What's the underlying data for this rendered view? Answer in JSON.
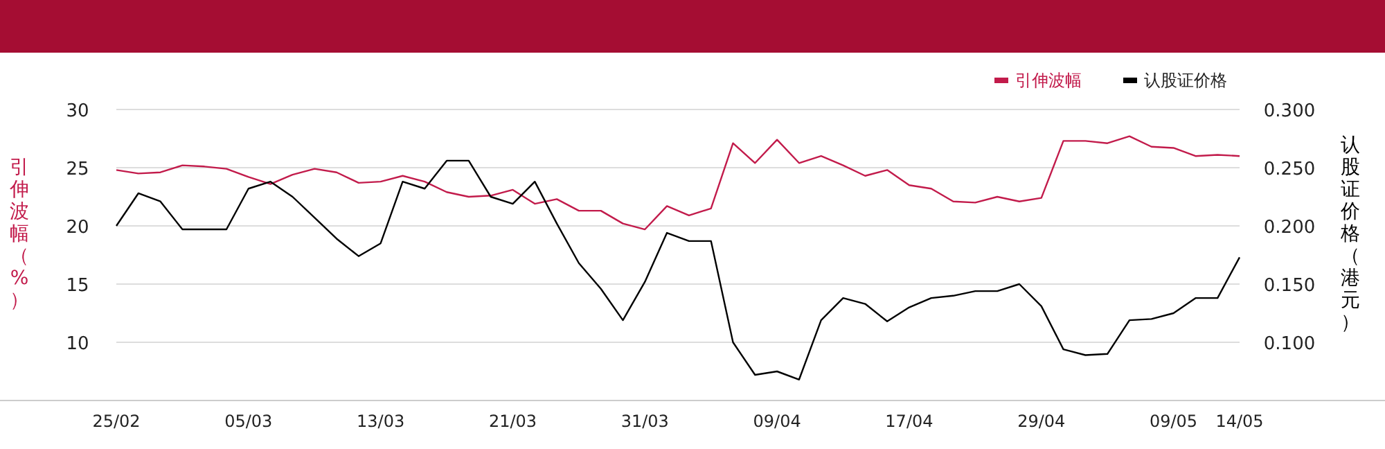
{
  "chart_data": {
    "type": "line",
    "categories": [
      "25/02",
      null,
      null,
      null,
      null,
      null,
      "05/03",
      null,
      null,
      null,
      null,
      null,
      "13/03",
      null,
      null,
      null,
      null,
      null,
      "21/03",
      null,
      null,
      null,
      null,
      null,
      "31/03",
      null,
      null,
      null,
      null,
      null,
      "09/04",
      null,
      null,
      null,
      null,
      null,
      "17/04",
      null,
      null,
      null,
      null,
      null,
      "29/04",
      null,
      null,
      null,
      null,
      null,
      "09/05",
      null,
      null,
      "14/05"
    ],
    "series": [
      {
        "name": "引伸波幅",
        "color": "#c21b4b",
        "values": [
          24.8,
          24.5,
          24.6,
          25.2,
          25.1,
          24.9,
          24.2,
          23.6,
          24.4,
          24.9,
          24.6,
          23.7,
          23.8,
          24.3,
          23.8,
          22.9,
          22.5,
          22.6,
          23.1,
          21.9,
          22.3,
          21.3,
          21.3,
          20.2,
          19.7,
          21.7,
          20.9,
          21.5,
          27.1,
          25.4,
          27.4,
          25.4,
          26.0,
          25.2,
          24.3,
          24.8,
          23.5,
          23.2,
          22.1,
          22.0,
          22.5,
          22.1,
          22.4,
          27.3,
          27.3,
          27.1,
          27.7,
          26.8,
          26.7,
          26.0,
          26.1,
          26.0
        ]
      },
      {
        "name": "认股证价格",
        "color": "#000000",
        "axis": "y2",
        "values": [
          0.2,
          0.228,
          0.221,
          0.197,
          0.197,
          0.197,
          0.232,
          0.238,
          0.225,
          0.207,
          0.189,
          0.174,
          0.185,
          0.238,
          0.232,
          0.256,
          0.256,
          0.225,
          0.219,
          0.238,
          0.202,
          0.168,
          0.146,
          0.119,
          0.152,
          0.194,
          0.187,
          0.187,
          0.1,
          0.072,
          0.075,
          0.068,
          0.119,
          0.138,
          0.133,
          0.118,
          0.13,
          0.138,
          0.14,
          0.144,
          0.144,
          0.15,
          0.131,
          0.094,
          0.089,
          0.09,
          0.119,
          0.12,
          0.125,
          0.138,
          0.138,
          0.173
        ]
      }
    ],
    "ylabel": "引伸波幅（%）",
    "y2label": "认股证价格（港元）",
    "ylim": [
      5,
      30
    ],
    "yticks": [
      10,
      15,
      20,
      25,
      30
    ],
    "y2lim": [
      0.05,
      0.3
    ],
    "y2ticks": [
      {
        "value": 0.1,
        "label": "0.100"
      },
      {
        "value": 0.15,
        "label": "0.150"
      },
      {
        "value": 0.2,
        "label": "0.200"
      },
      {
        "value": 0.25,
        "label": "0.250"
      },
      {
        "value": 0.3,
        "label": "0.300"
      }
    ],
    "grid": "y",
    "legend": "top right"
  }
}
